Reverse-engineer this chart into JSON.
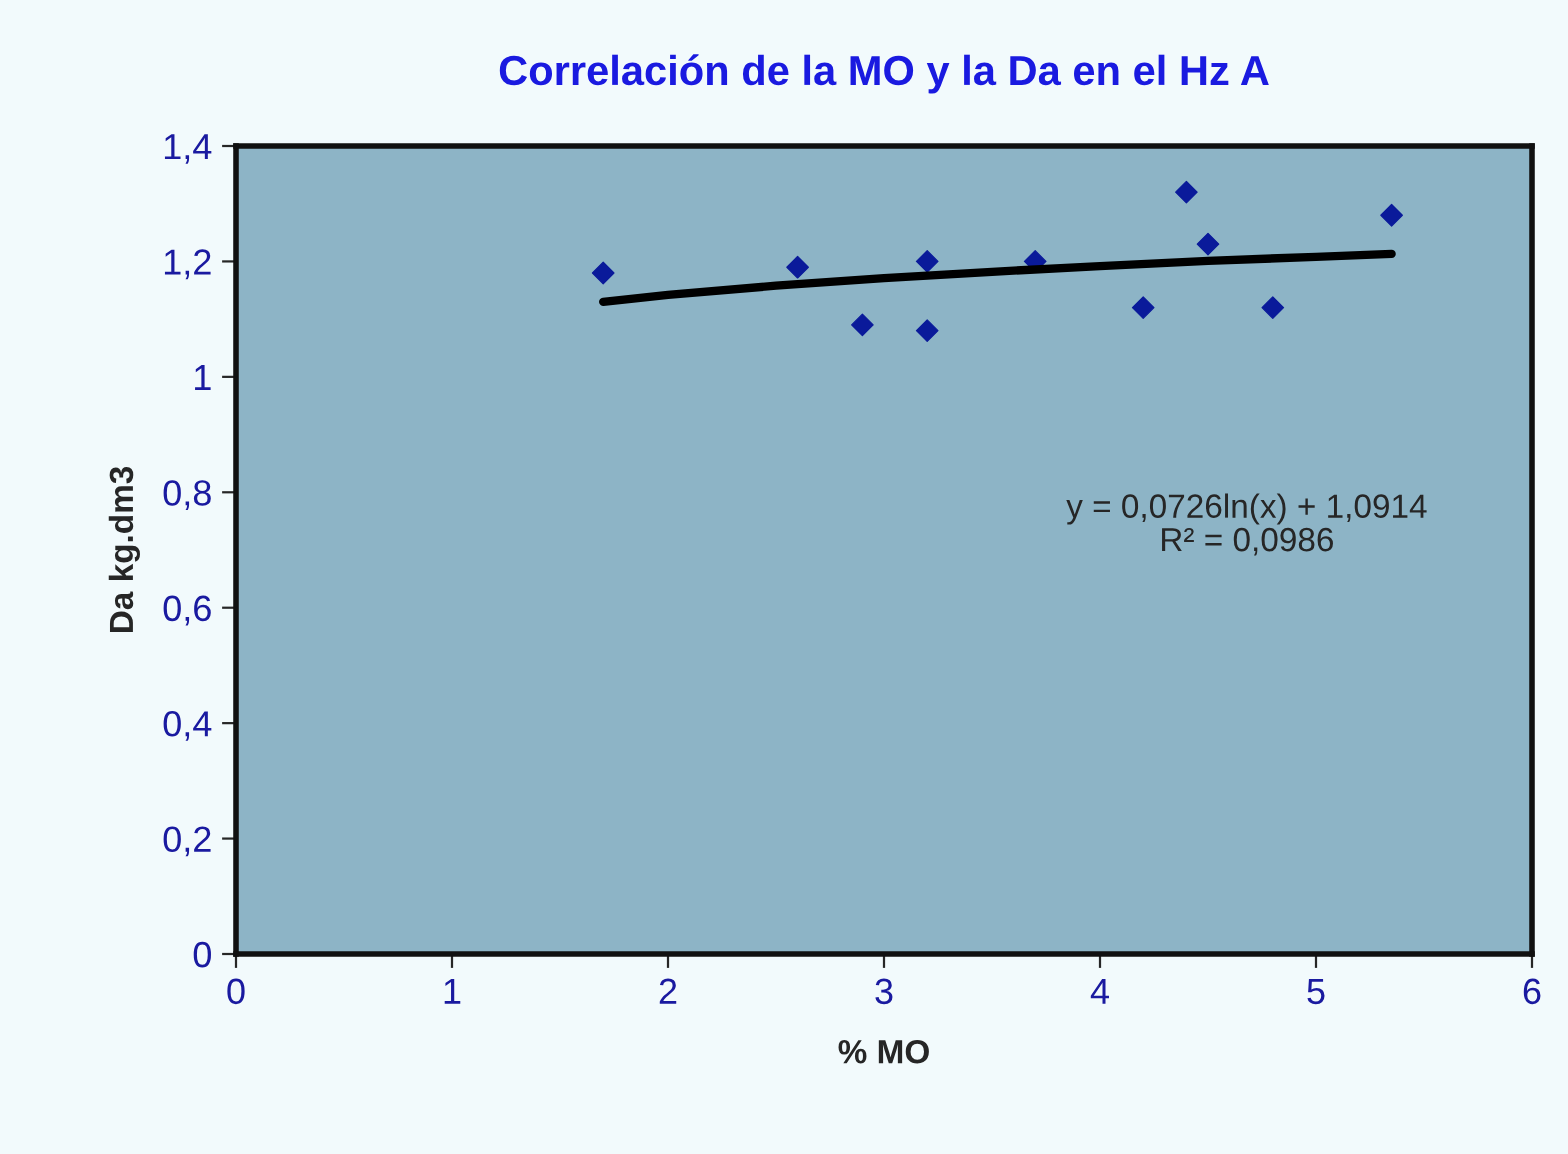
{
  "chart_data": {
    "type": "scatter",
    "title": "Correlación de la MO y la Da en el Hz A",
    "xlabel": "% MO",
    "ylabel": "Da kg.dm3",
    "xlim": [
      0,
      6
    ],
    "xticks": [
      0,
      1,
      2,
      3,
      4,
      5,
      6
    ],
    "ylim": [
      0,
      1.4
    ],
    "yticks": [
      0,
      {
        "value": 0.2,
        "label": "0,2"
      },
      {
        "value": 0.4,
        "label": "0,4"
      },
      {
        "value": 0.6,
        "label": "0,6"
      },
      {
        "value": 0.8,
        "label": "0,8"
      },
      1,
      {
        "value": 1.2,
        "label": "1,2"
      },
      {
        "value": 1.4,
        "label": "1,4"
      }
    ],
    "grid": false,
    "legend": false,
    "series": [
      {
        "marker": "diamond",
        "color": "#0a1a9a",
        "x": [
          1.7,
          2.6,
          2.9,
          3.2,
          3.2,
          3.7,
          4.2,
          4.4,
          4.5,
          4.8,
          5.35
        ],
        "values": [
          1.18,
          1.19,
          1.09,
          1.2,
          1.08,
          1.2,
          1.12,
          1.32,
          1.23,
          1.12,
          1.28
        ]
      },
      {
        "type": "line",
        "color": "#000000",
        "line_style": "solid",
        "x": [
          1.7,
          2,
          2.5,
          3,
          3.5,
          4,
          4.5,
          5,
          5.35
        ],
        "values": [
          1.13,
          1.142,
          1.158,
          1.171,
          1.182,
          1.192,
          1.201,
          1.208,
          1.213
        ]
      }
    ],
    "annotations": [
      "y = 0,0726ln(x) + 1,0914\nR² = 0,0986"
    ]
  }
}
